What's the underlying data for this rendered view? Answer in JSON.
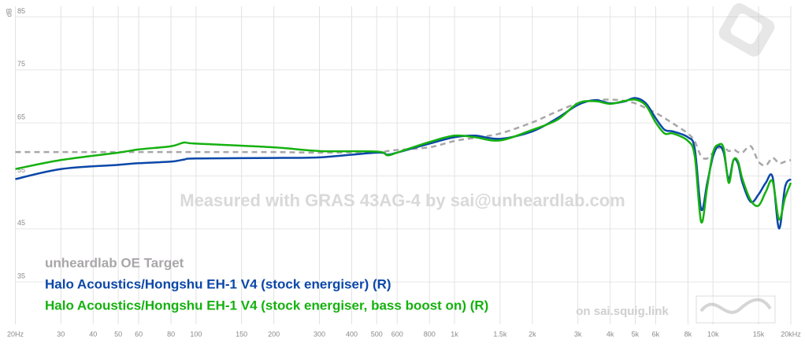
{
  "chart_data": {
    "type": "line",
    "y_label": "dB",
    "watermark": "Measured with GRAS 43AG-4 by sai@unheardlab.com",
    "annotation": "on sai.squig.link",
    "log_x": true,
    "grid": true,
    "xlim": [
      20,
      20000
    ],
    "ylim": [
      27,
      87
    ],
    "xticks": [
      {
        "value": 20,
        "label": "20Hz"
      },
      30,
      40,
      50,
      60,
      80,
      100,
      150,
      200,
      300,
      400,
      500,
      600,
      800,
      {
        "value": 1000,
        "label": "1k"
      },
      {
        "value": 1500,
        "label": "1.5k"
      },
      {
        "value": 2000,
        "label": "2k"
      },
      {
        "value": 3000,
        "label": "3k"
      },
      {
        "value": 4000,
        "label": "4k"
      },
      {
        "value": 5000,
        "label": "5k"
      },
      {
        "value": 6000,
        "label": "6k"
      },
      {
        "value": 8000,
        "label": "8k"
      },
      {
        "value": 10000,
        "label": "10k"
      },
      {
        "value": 15000,
        "label": "15k"
      },
      {
        "value": 20000,
        "label": "20kHz"
      }
    ],
    "yticks": [
      35,
      45,
      55,
      65,
      75,
      85
    ],
    "x": [
      20,
      30,
      50,
      60,
      80,
      90,
      100,
      200,
      300,
      500,
      550,
      600,
      800,
      1000,
      1200,
      1500,
      2000,
      2500,
      3000,
      3500,
      4000,
      4500,
      5000,
      5500,
      6000,
      6500,
      7000,
      8000,
      8500,
      9000,
      9500,
      10000,
      10500,
      11000,
      11500,
      12000,
      12500,
      13000,
      14000,
      15000,
      16000,
      17000,
      18000,
      19000,
      20000
    ],
    "series": [
      {
        "name": "unheardlab OE Target",
        "color": "#a9a6a9",
        "style": "dashed",
        "values": [
          59.5,
          59.5,
          59.5,
          59.5,
          59.5,
          59.5,
          59.5,
          59.5,
          59.4,
          59.5,
          59.7,
          59.9,
          60.4,
          61.6,
          62.2,
          63.0,
          65.1,
          67.2,
          68.7,
          69.3,
          69.4,
          69.2,
          68.7,
          67.8,
          66.9,
          65.9,
          64.9,
          63.0,
          61.5,
          58.7,
          58.3,
          59.4,
          60.2,
          60.5,
          59.7,
          60.0,
          59.5,
          59.4,
          60.6,
          57.7,
          57.0,
          58.4,
          57.4,
          57.7,
          58.0
        ]
      },
      {
        "name": "Halo Acoustics/Hongshu EH-1 V4 (stock energiser) (R)",
        "color": "#0a47a8",
        "style": "solid",
        "values": [
          54.4,
          56.3,
          57.1,
          57.4,
          57.7,
          58.1,
          58.3,
          58.4,
          58.5,
          59.4,
          59.0,
          59.4,
          61.1,
          62.3,
          62.6,
          62.0,
          63.4,
          65.9,
          68.4,
          69.3,
          68.7,
          69.0,
          69.7,
          68.7,
          65.9,
          63.7,
          63.4,
          62.3,
          60.1,
          48.7,
          53.7,
          58.7,
          60.6,
          59.4,
          54.4,
          58.0,
          57.3,
          53.7,
          50.1,
          51.5,
          53.7,
          54.8,
          45.1,
          52.9,
          54.4
        ]
      },
      {
        "name": "Halo Acoustics/Hongshu EH-1 V4 (stock energiser, bass boost on) (R)",
        "color": "#15b10f",
        "style": "solid",
        "values": [
          56.3,
          58.0,
          59.4,
          60.0,
          60.6,
          61.3,
          61.1,
          60.4,
          59.7,
          59.6,
          58.9,
          59.4,
          61.4,
          62.6,
          62.3,
          61.7,
          63.7,
          65.6,
          68.7,
          69.1,
          68.6,
          69.1,
          69.4,
          68.3,
          65.1,
          63.0,
          63.0,
          61.6,
          58.7,
          46.3,
          53.0,
          59.4,
          60.9,
          60.2,
          53.7,
          58.0,
          57.7,
          54.4,
          50.4,
          49.4,
          52.0,
          54.0,
          46.8,
          50.9,
          53.7
        ]
      }
    ]
  }
}
